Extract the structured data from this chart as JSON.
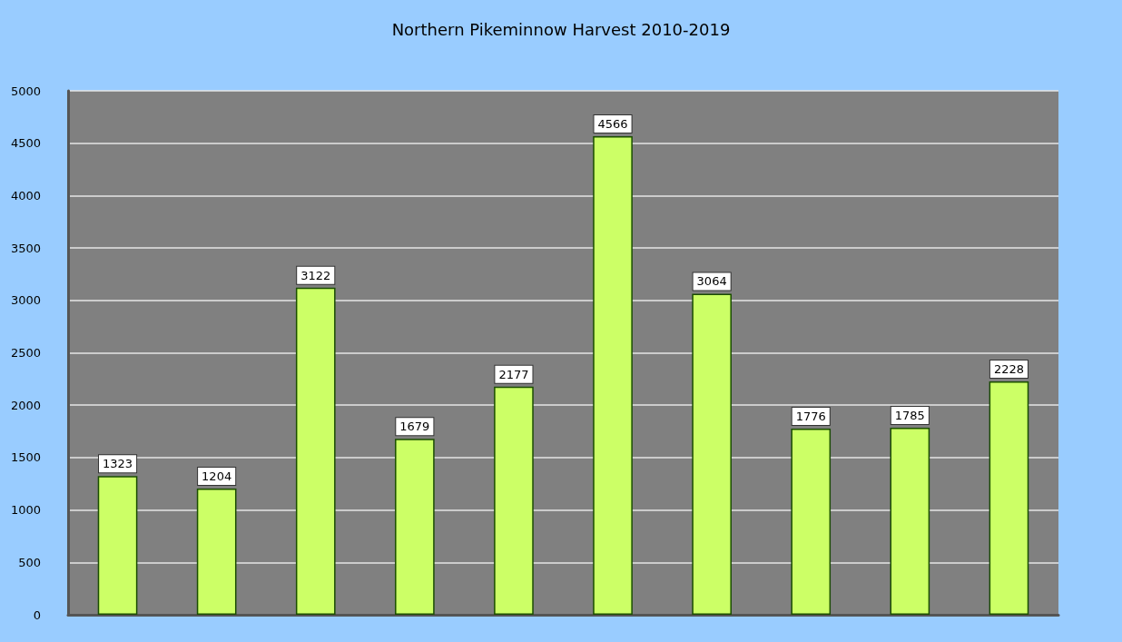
{
  "chart_data": {
    "type": "bar",
    "title": "Northern Pikeminnow Harvest 2010-2019",
    "categories": [
      null,
      null,
      null,
      null,
      null,
      null,
      null,
      null,
      null,
      null
    ],
    "values": [
      1323,
      1204,
      3122,
      1679,
      2177,
      4566,
      3064,
      1776,
      1785,
      2228
    ],
    "color": "#ccff66",
    "ylim": [
      0,
      5000
    ],
    "yticks": [
      0,
      500,
      1000,
      1500,
      2000,
      2500,
      3000,
      3500,
      4000,
      4500,
      5000
    ],
    "grid": "y",
    "data_labels": true,
    "tick_labels": "y"
  }
}
